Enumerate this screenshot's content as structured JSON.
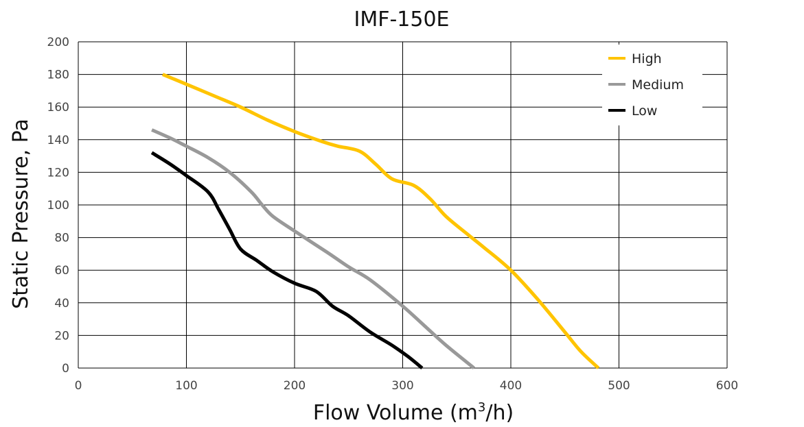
{
  "chart_data": {
    "type": "line",
    "title": "IMF-150E",
    "xlabel_main": "Flow Volume (m",
    "xlabel_sup": "3",
    "xlabel_end": "/h)",
    "ylabel": "Static Pressure, Pa",
    "xlim": [
      0,
      600
    ],
    "ylim": [
      0,
      200
    ],
    "xticks": [
      0,
      100,
      200,
      300,
      400,
      500,
      600
    ],
    "yticks": [
      0,
      20,
      40,
      60,
      80,
      100,
      120,
      140,
      160,
      180,
      200
    ],
    "grid": true,
    "legend_position": "top-right",
    "series": [
      {
        "name": "High",
        "color": "#FFC400",
        "points": [
          [
            78,
            180
          ],
          [
            100,
            174
          ],
          [
            125,
            167
          ],
          [
            150,
            160
          ],
          [
            175,
            152
          ],
          [
            200,
            145
          ],
          [
            225,
            139
          ],
          [
            240,
            136
          ],
          [
            260,
            133
          ],
          [
            275,
            125
          ],
          [
            290,
            116
          ],
          [
            310,
            112
          ],
          [
            325,
            104
          ],
          [
            340,
            93
          ],
          [
            360,
            82
          ],
          [
            375,
            74
          ],
          [
            400,
            60
          ],
          [
            425,
            42
          ],
          [
            450,
            22
          ],
          [
            465,
            10
          ],
          [
            481,
            0
          ]
        ]
      },
      {
        "name": "Medium",
        "color": "#999999",
        "points": [
          [
            68,
            146
          ],
          [
            85,
            141
          ],
          [
            100,
            136
          ],
          [
            120,
            129
          ],
          [
            140,
            120
          ],
          [
            160,
            108
          ],
          [
            170,
            100
          ],
          [
            180,
            93
          ],
          [
            200,
            84
          ],
          [
            230,
            71
          ],
          [
            250,
            62
          ],
          [
            270,
            54
          ],
          [
            300,
            38
          ],
          [
            320,
            26
          ],
          [
            340,
            14
          ],
          [
            366,
            0
          ]
        ]
      },
      {
        "name": "Low",
        "color": "#000000",
        "points": [
          [
            68,
            132
          ],
          [
            85,
            125
          ],
          [
            100,
            118
          ],
          [
            120,
            108
          ],
          [
            130,
            97
          ],
          [
            140,
            85
          ],
          [
            150,
            73
          ],
          [
            165,
            66
          ],
          [
            180,
            59
          ],
          [
            200,
            52
          ],
          [
            220,
            47
          ],
          [
            235,
            38
          ],
          [
            250,
            32
          ],
          [
            270,
            22
          ],
          [
            290,
            14
          ],
          [
            305,
            7
          ],
          [
            318,
            0
          ]
        ]
      }
    ]
  }
}
